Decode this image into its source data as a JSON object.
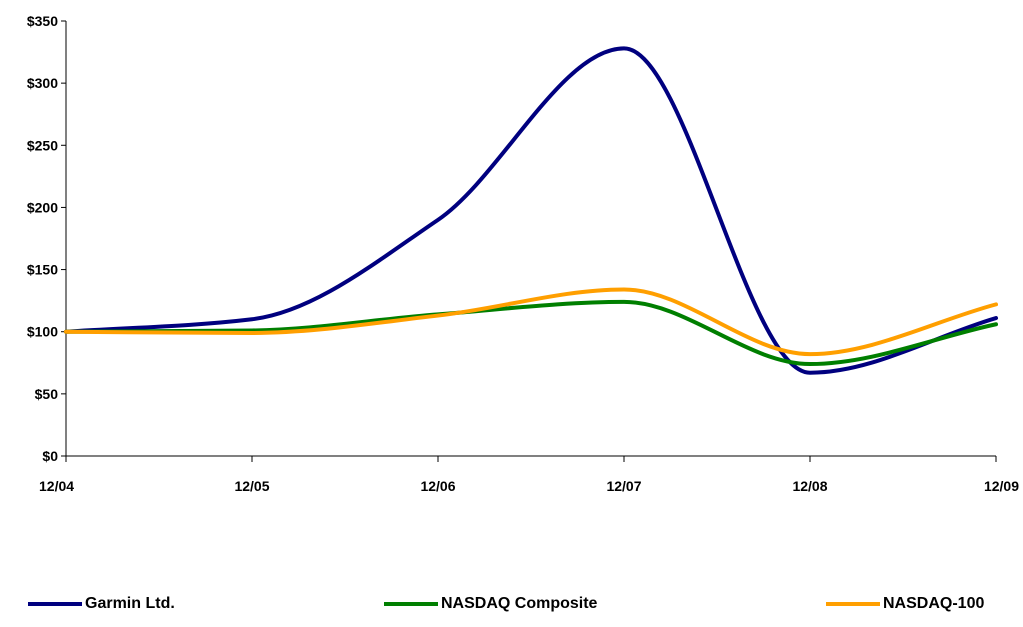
{
  "chart_data": {
    "type": "line",
    "title": "",
    "xlabel": "",
    "ylabel": "",
    "categories": [
      "12/04",
      "12/05",
      "12/06",
      "12/07",
      "12/08",
      "12/09"
    ],
    "y_ticks": [
      "$0",
      "$50",
      "$100",
      "$150",
      "$200",
      "$250",
      "$300",
      "$350"
    ],
    "ylim": [
      0,
      350
    ],
    "grid": false,
    "legend_position": "bottom",
    "series": [
      {
        "name": "Garmin Ltd.",
        "color": "#00007f",
        "values": [
          100,
          110,
          190,
          328,
          67,
          111
        ]
      },
      {
        "name": "NASDAQ Composite",
        "color": "#007f00",
        "values": [
          100,
          101,
          114,
          124,
          74,
          106
        ]
      },
      {
        "name": "NASDAQ-100",
        "color": "#ff9f00",
        "values": [
          100,
          99,
          113,
          134,
          82,
          122
        ]
      }
    ]
  }
}
